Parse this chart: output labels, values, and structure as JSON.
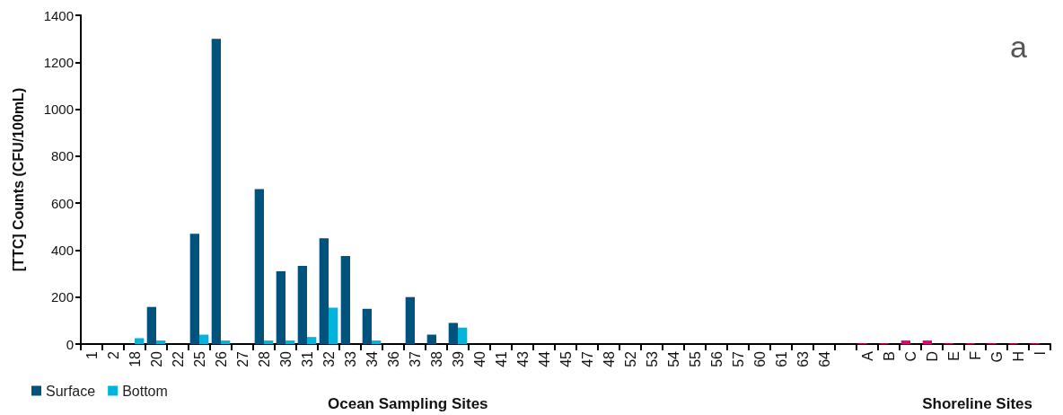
{
  "chart_data": {
    "type": "bar",
    "ylabel": "[TTC] Counts (CFU/100mL)",
    "xlabel": "Ocean Sampling Sites",
    "annotations": [
      "a",
      "Shoreline Sites"
    ],
    "categories": [
      "1",
      "2",
      "18",
      "20",
      "22",
      "25",
      "26",
      "27",
      "28",
      "30",
      "31",
      "32",
      "33",
      "34",
      "36",
      "37",
      "38",
      "39",
      "40",
      "41",
      "43",
      "44",
      "45",
      "47",
      "48",
      "52",
      "53",
      "54",
      "55",
      "56",
      "57",
      "60",
      "61",
      "63",
      "64",
      null,
      "A",
      "B",
      "C",
      "D",
      "E",
      "F",
      "G",
      "H",
      "I"
    ],
    "series": [
      {
        "name": "Surface",
        "color": "#02527e",
        "values": [
          0,
          0,
          0,
          158,
          0,
          470,
          1300,
          0,
          660,
          310,
          333,
          450,
          375,
          150,
          0,
          200,
          40,
          90,
          0,
          0,
          0,
          0,
          0,
          0,
          0,
          0,
          0,
          0,
          0,
          0,
          0,
          0,
          0,
          0,
          0,
          null,
          3,
          3,
          15,
          15,
          3,
          3,
          3,
          3,
          3
        ],
        "colors": [
          "#02527e",
          "#02527e",
          "#02527e",
          "#02527e",
          "#02527e",
          "#02527e",
          "#02527e",
          "#02527e",
          "#02527e",
          "#02527e",
          "#02527e",
          "#02527e",
          "#02527e",
          "#02527e",
          "#02527e",
          "#02527e",
          "#02527e",
          "#02527e",
          "#02527e",
          "#02527e",
          "#02527e",
          "#02527e",
          "#02527e",
          "#02527e",
          "#02527e",
          "#02527e",
          "#02527e",
          "#02527e",
          "#02527e",
          "#02527e",
          "#02527e",
          "#02527e",
          "#02527e",
          "#02527e",
          "#02527e",
          null,
          "#e0007a",
          "#e0007a",
          "#e0007a",
          "#e0007a",
          "#e0007a",
          "#e0007a",
          "#e0007a",
          "#e0007a",
          "#e0007a"
        ]
      },
      {
        "name": "Bottom",
        "color": "#00b4dc",
        "values": [
          0,
          0,
          25,
          15,
          0,
          40,
          15,
          0,
          15,
          15,
          30,
          155,
          0,
          15,
          0,
          0,
          0,
          70,
          0,
          0,
          0,
          0,
          0,
          0,
          0,
          0,
          0,
          0,
          0,
          0,
          0,
          0,
          0,
          0,
          0,
          null,
          null,
          null,
          null,
          null,
          null,
          null,
          null,
          null,
          null
        ]
      }
    ],
    "ylim": [
      0,
      1400
    ],
    "yticks": [
      0,
      200,
      400,
      600,
      800,
      1000,
      1200,
      1400
    ],
    "grid": false,
    "legend": "bottom left"
  }
}
